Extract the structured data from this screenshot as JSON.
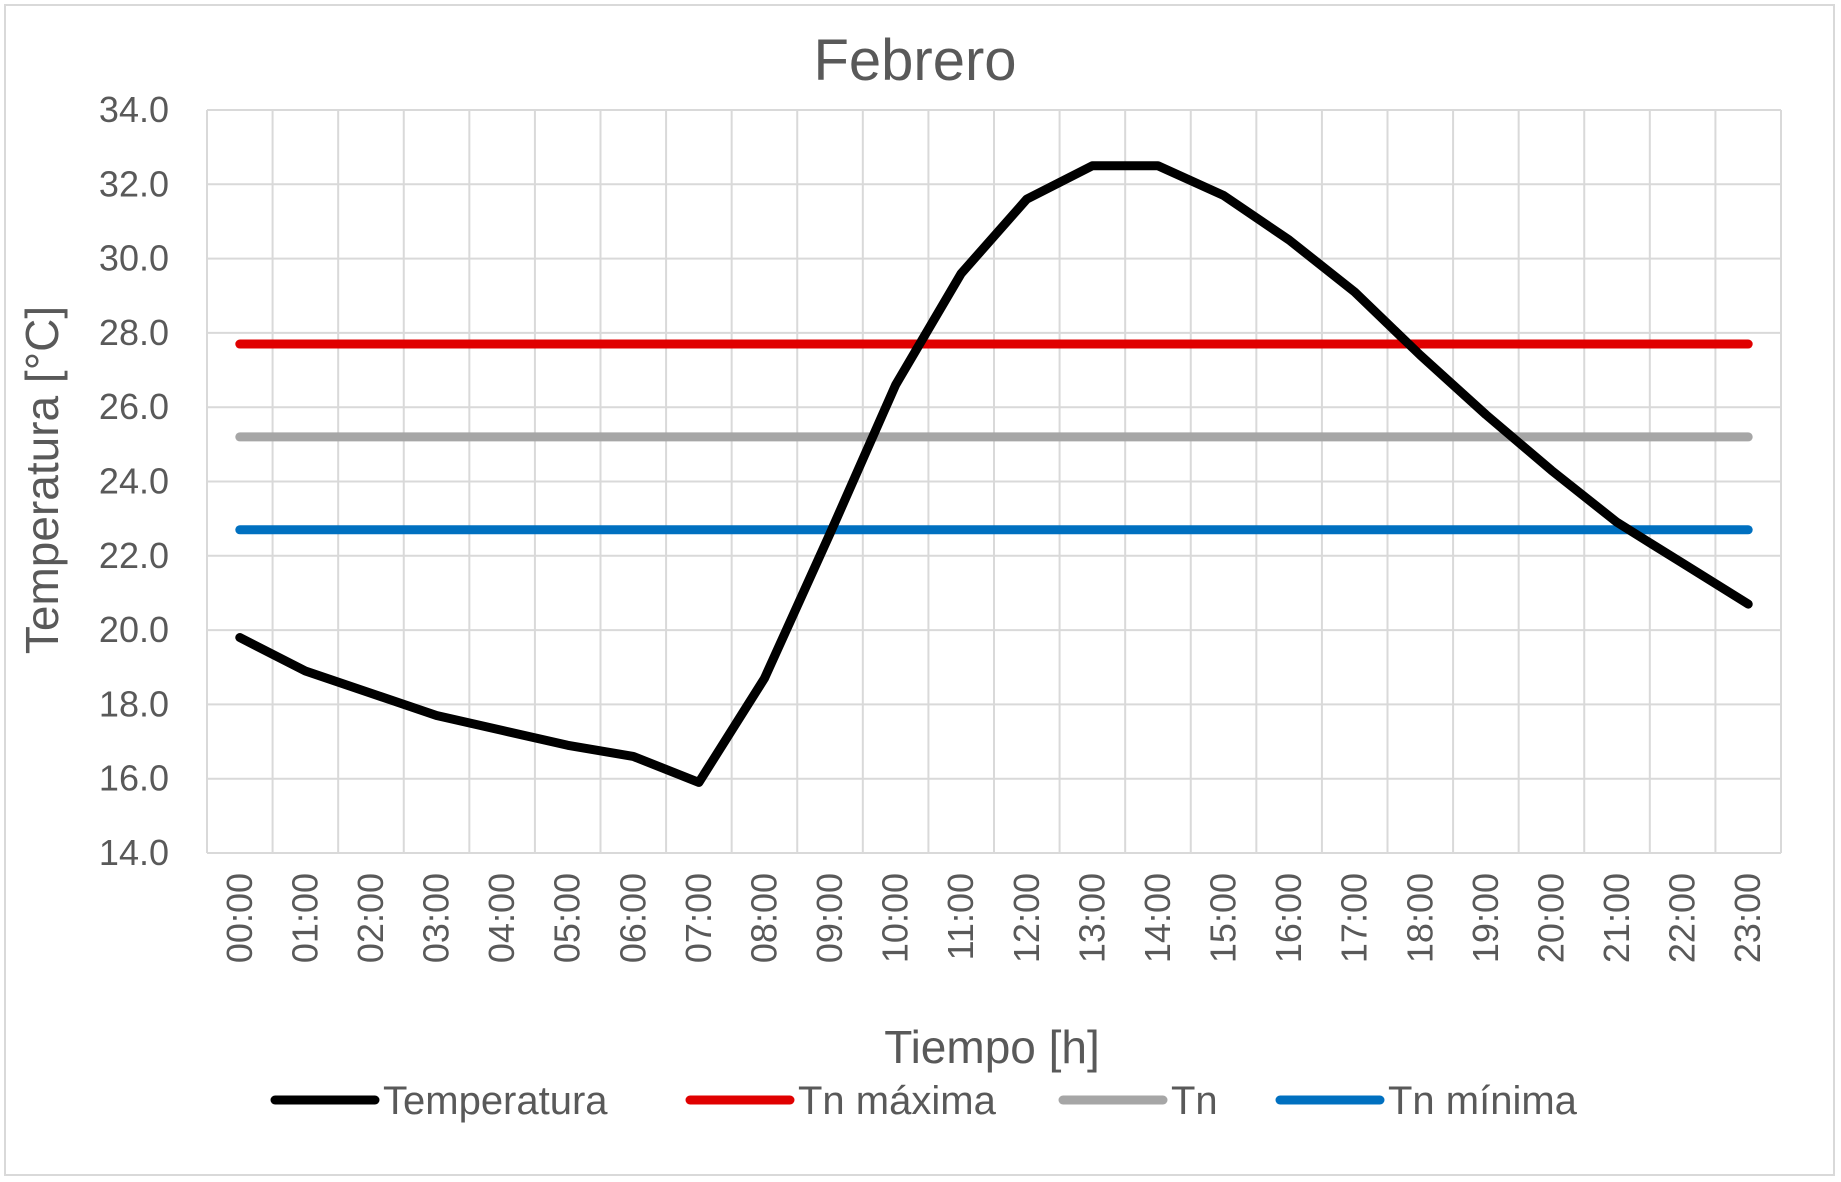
{
  "chart_data": {
    "type": "line",
    "title": "Febrero",
    "xlabel": "Tiempo [h]",
    "ylabel": "Temperatura [°C]",
    "ylim": [
      14,
      34
    ],
    "ytick_step": 2,
    "ytick_labels": [
      "14.0",
      "16.0",
      "18.0",
      "20.0",
      "22.0",
      "24.0",
      "26.0",
      "28.0",
      "30.0",
      "32.0",
      "34.0"
    ],
    "grid": true,
    "legend_position": "bottom",
    "categories": [
      "00:00",
      "01:00",
      "02:00",
      "03:00",
      "04:00",
      "05:00",
      "06:00",
      "07:00",
      "08:00",
      "09:00",
      "10:00",
      "11:00",
      "12:00",
      "13:00",
      "14:00",
      "15:00",
      "16:00",
      "17:00",
      "18:00",
      "19:00",
      "20:00",
      "21:00",
      "22:00",
      "23:00"
    ],
    "series": [
      {
        "name": "Temperatura",
        "color": "#000000",
        "values": [
          19.8,
          18.9,
          18.3,
          17.7,
          17.3,
          16.9,
          16.6,
          15.9,
          18.7,
          22.6,
          26.6,
          29.6,
          31.6,
          32.5,
          32.5,
          31.7,
          30.5,
          29.1,
          27.4,
          25.8,
          24.3,
          22.9,
          21.8,
          20.7
        ]
      },
      {
        "name": "Tn máxima",
        "color": "#e00000",
        "values": [
          27.7,
          27.7,
          27.7,
          27.7,
          27.7,
          27.7,
          27.7,
          27.7,
          27.7,
          27.7,
          27.7,
          27.7,
          27.7,
          27.7,
          27.7,
          27.7,
          27.7,
          27.7,
          27.7,
          27.7,
          27.7,
          27.7,
          27.7,
          27.7
        ]
      },
      {
        "name": "Tn",
        "color": "#a6a6a6",
        "values": [
          25.2,
          25.2,
          25.2,
          25.2,
          25.2,
          25.2,
          25.2,
          25.2,
          25.2,
          25.2,
          25.2,
          25.2,
          25.2,
          25.2,
          25.2,
          25.2,
          25.2,
          25.2,
          25.2,
          25.2,
          25.2,
          25.2,
          25.2,
          25.2
        ]
      },
      {
        "name": "Tn mínima",
        "color": "#0070c0",
        "values": [
          22.7,
          22.7,
          22.7,
          22.7,
          22.7,
          22.7,
          22.7,
          22.7,
          22.7,
          22.7,
          22.7,
          22.7,
          22.7,
          22.7,
          22.7,
          22.7,
          22.7,
          22.7,
          22.7,
          22.7,
          22.7,
          22.7,
          22.7,
          22.7
        ]
      }
    ]
  }
}
